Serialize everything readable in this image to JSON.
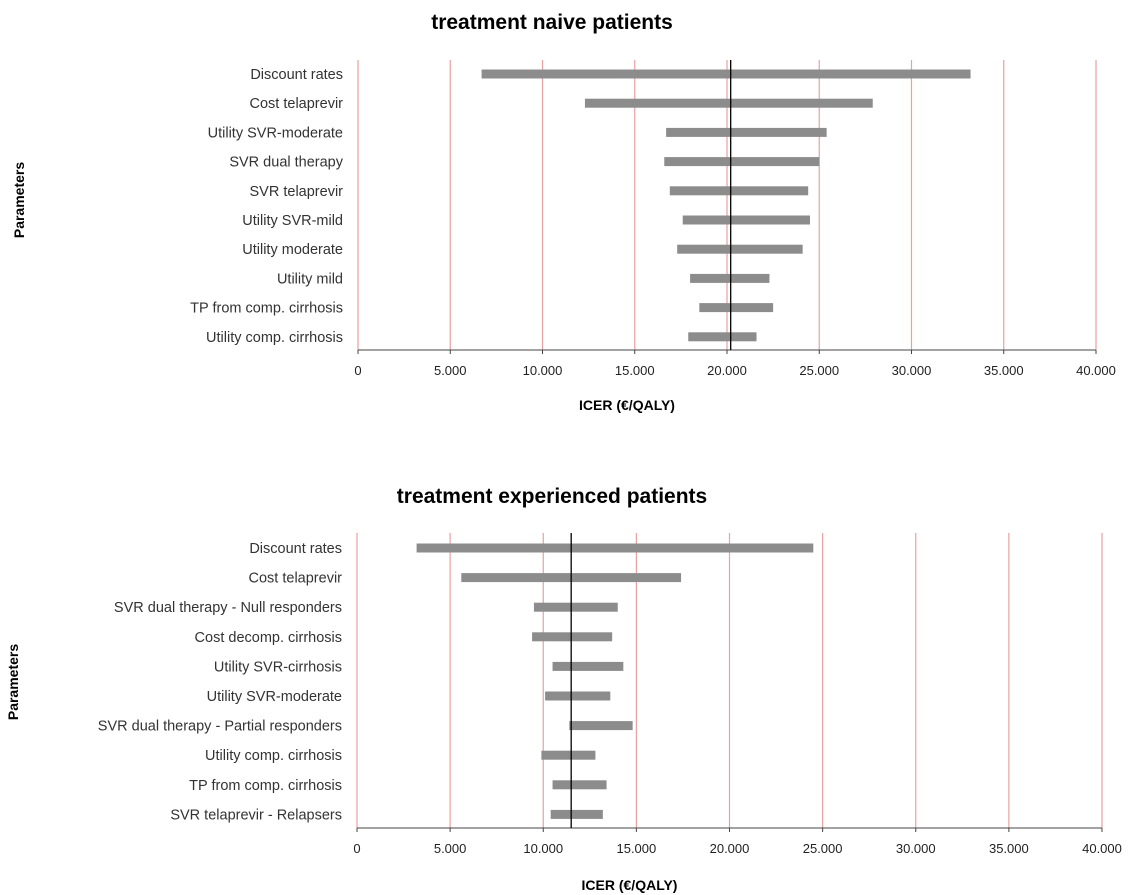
{
  "chart_data": [
    {
      "type": "bar",
      "orientation": "horizontal",
      "subtype": "tornado",
      "title": "treatment naive patients",
      "xlabel": "ICER (€/QALY)",
      "ylabel": "Parameters",
      "xlim": [
        0,
        40000
      ],
      "xticks": [
        0,
        5000,
        10000,
        15000,
        20000,
        25000,
        30000,
        35000,
        40000
      ],
      "xtick_labels": [
        "0",
        "5.000",
        "10.000",
        "15.000",
        "20.000",
        "25.000",
        "30.000",
        "35.000",
        "40.000"
      ],
      "grid": "vertical",
      "grid_color": "#e8a0a0",
      "bar_color": "#8c8c8c",
      "baseline": 20200,
      "categories": [
        "Discount rates",
        "Cost telaprevir",
        "Utility SVR-moderate",
        "SVR dual therapy",
        "SVR telaprevir",
        "Utility SVR-mild",
        "Utility moderate",
        "Utility mild",
        "TP  from comp. cirrhosis",
        "Utility comp. cirrhosis"
      ],
      "ranges": [
        [
          6700,
          33200
        ],
        [
          12300,
          27900
        ],
        [
          16700,
          25400
        ],
        [
          16600,
          25000
        ],
        [
          16900,
          24400
        ],
        [
          17600,
          24500
        ],
        [
          17300,
          24100
        ],
        [
          18000,
          22300
        ],
        [
          18500,
          22500
        ],
        [
          17900,
          21600
        ]
      ]
    },
    {
      "type": "bar",
      "orientation": "horizontal",
      "subtype": "tornado",
      "title": "treatment experienced patients",
      "xlabel": "ICER (€/QALY)",
      "ylabel": "Parameters",
      "xlim": [
        0,
        40000
      ],
      "xticks": [
        0,
        5000,
        10000,
        15000,
        20000,
        25000,
        30000,
        35000,
        40000
      ],
      "xtick_labels": [
        "0",
        "5.000",
        "10.000",
        "15.000",
        "20.000",
        "25.000",
        "30.000",
        "35.000",
        "40.000"
      ],
      "grid": "vertical",
      "grid_color": "#e8a0a0",
      "bar_color": "#8c8c8c",
      "baseline": 11500,
      "categories": [
        "Discount rates",
        "Cost telaprevir",
        "SVR dual therapy - Null responders",
        "Cost decomp. cirrhosis",
        "Utility SVR-cirrhosis",
        "Utility SVR-moderate",
        "SVR dual therapy - Partial responders",
        "Utility comp. cirrhosis",
        "TP  from comp. cirrhosis",
        "SVR telaprevir - Relapsers"
      ],
      "ranges": [
        [
          3200,
          24500
        ],
        [
          5600,
          17400
        ],
        [
          9500,
          14000
        ],
        [
          9400,
          13700
        ],
        [
          10500,
          14300
        ],
        [
          10100,
          13600
        ],
        [
          11400,
          14800
        ],
        [
          9900,
          12800
        ],
        [
          10500,
          13400
        ],
        [
          10400,
          13200
        ]
      ]
    }
  ]
}
